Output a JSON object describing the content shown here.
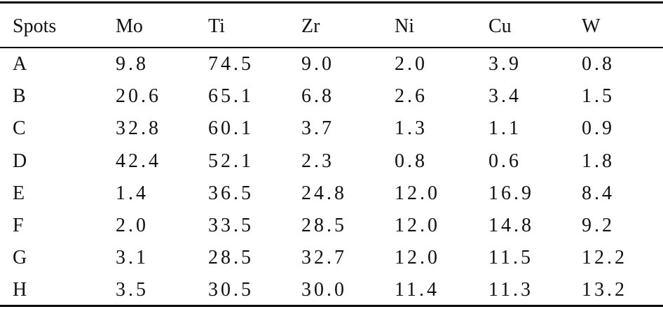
{
  "table": {
    "header": [
      "Spots",
      "Mo",
      "Ti",
      "Zr",
      "Ni",
      "Cu",
      "W"
    ],
    "rows": [
      [
        "A",
        "9.8",
        "74.5",
        "9.0",
        "2.0",
        "3.9",
        "0.8"
      ],
      [
        "B",
        "20.6",
        "65.1",
        "6.8",
        "2.6",
        "3.4",
        "1.5"
      ],
      [
        "C",
        "32.8",
        "60.1",
        "3.7",
        "1.3",
        "1.1",
        "0.9"
      ],
      [
        "D",
        "42.4",
        "52.1",
        "2.3",
        "0.8",
        "0.6",
        "1.8"
      ],
      [
        "E",
        "1.4",
        "36.5",
        "24.8",
        "12.0",
        "16.9",
        "8.4"
      ],
      [
        "F",
        "2.0",
        "33.5",
        "28.5",
        "12.0",
        "14.8",
        "9.2"
      ],
      [
        "G",
        "3.1",
        "28.5",
        "32.7",
        "12.0",
        "11.5",
        "12.2"
      ],
      [
        "H",
        "3.5",
        "30.5",
        "30.0",
        "11.4",
        "11.3",
        "13.2"
      ]
    ]
  }
}
